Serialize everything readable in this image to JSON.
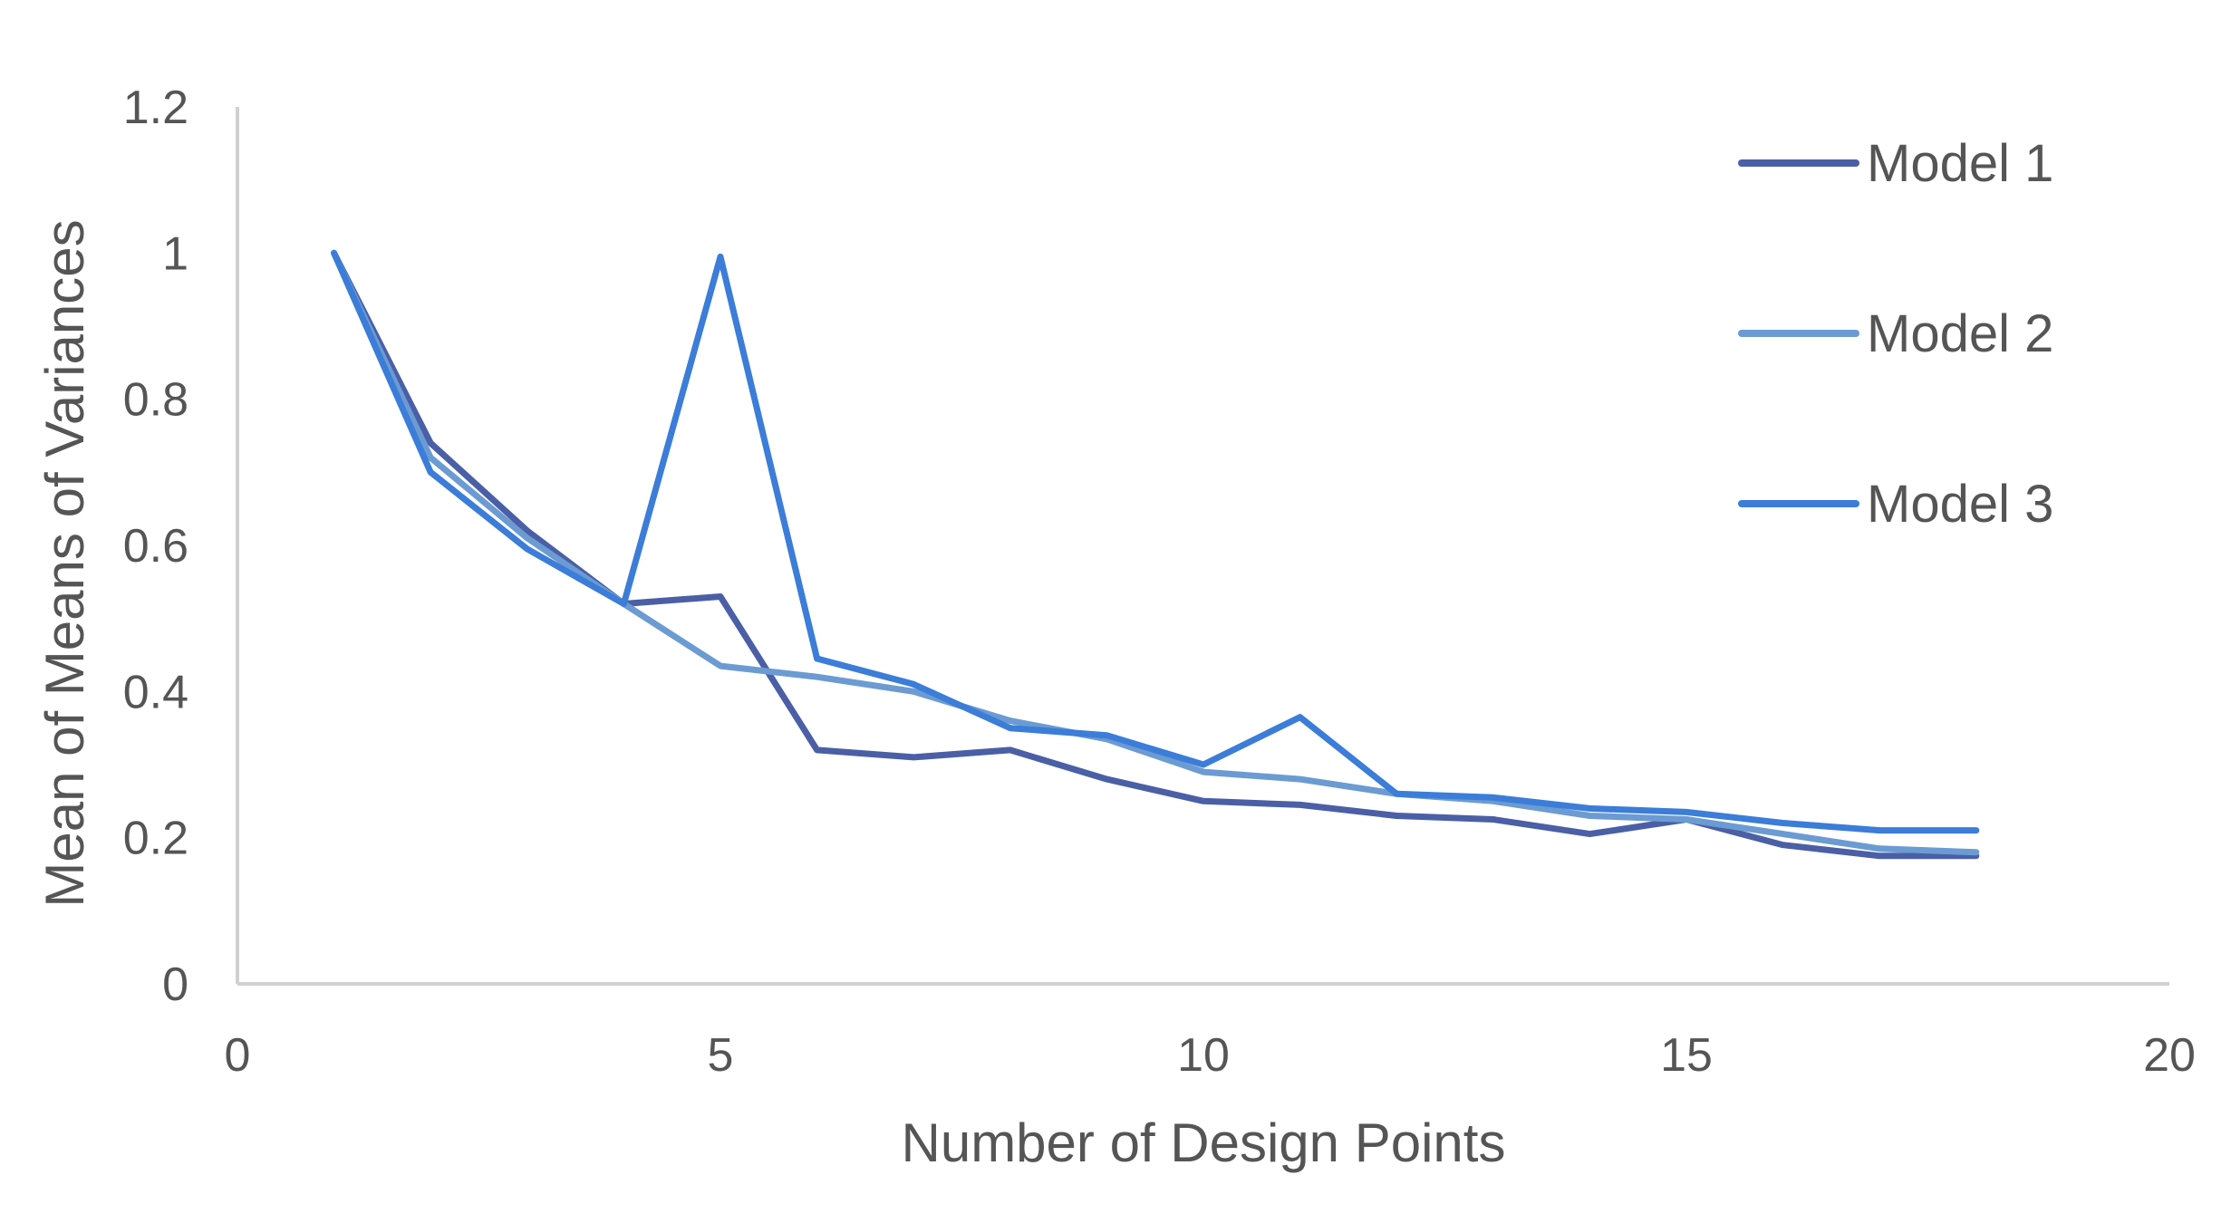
{
  "chart_data": {
    "type": "line",
    "xlabel": "Number of Design Points",
    "ylabel": "Mean of Means of Variances",
    "xlim": [
      0,
      20
    ],
    "ylim": [
      0,
      1.2
    ],
    "x_ticks": [
      "0",
      "5",
      "10",
      "15",
      "20"
    ],
    "y_ticks": [
      "0",
      "0.2",
      "0.4",
      "0.6",
      "0.8",
      "1",
      "1.2"
    ],
    "grid": false,
    "legend_position": "right",
    "x": [
      1,
      2,
      3,
      4,
      5,
      6,
      7,
      8,
      9,
      10,
      11,
      12,
      13,
      14,
      15,
      16,
      17,
      18
    ],
    "series": [
      {
        "name": "Model 1",
        "color": "#4a5fa6",
        "values": [
          1.0,
          0.74,
          0.62,
          0.52,
          0.53,
          0.32,
          0.31,
          0.32,
          0.28,
          0.25,
          0.245,
          0.23,
          0.225,
          0.205,
          0.225,
          0.19,
          0.175,
          0.175
        ]
      },
      {
        "name": "Model 2",
        "color": "#6b9bd2",
        "values": [
          1.0,
          0.72,
          0.61,
          0.52,
          0.435,
          0.42,
          0.4,
          0.36,
          0.335,
          0.29,
          0.28,
          0.26,
          0.25,
          0.23,
          0.225,
          0.205,
          0.185,
          0.18
        ]
      },
      {
        "name": "Model 3",
        "color": "#3b7dd8",
        "values": [
          1.0,
          0.7,
          0.595,
          0.52,
          0.995,
          0.445,
          0.41,
          0.35,
          0.34,
          0.3,
          0.365,
          0.26,
          0.255,
          0.24,
          0.235,
          0.22,
          0.21,
          0.21
        ]
      }
    ]
  }
}
